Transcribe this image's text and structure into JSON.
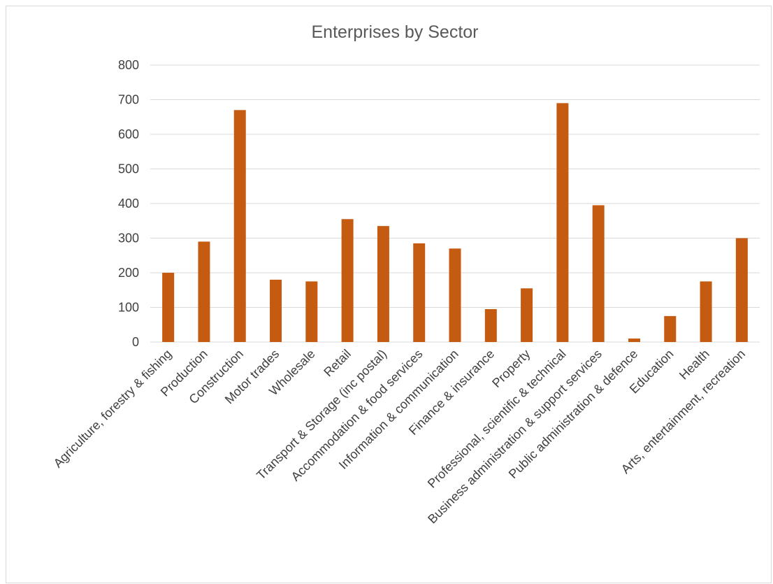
{
  "chart_data": {
    "type": "bar",
    "title": "Enterprises by Sector",
    "xlabel": "",
    "ylabel": "",
    "ylim": [
      0,
      800
    ],
    "yticks": [
      0,
      100,
      200,
      300,
      400,
      500,
      600,
      700,
      800
    ],
    "grid": true,
    "legend": "none",
    "bar_color": "#C55A11",
    "categories": [
      "Agriculture, forestry & fishing",
      "Production",
      "Construction",
      "Motor trades",
      "Wholesale",
      "Retail",
      "Transport & Storage (inc postal)",
      "Accommodation & food services",
      "Information & communication",
      "Finance & insurance",
      "Property",
      "Professional, scientific & technical",
      "Business administration & support services",
      "Public administration & defence",
      "Education",
      "Health",
      "Arts, entertainment, recreation"
    ],
    "values": [
      200,
      290,
      670,
      180,
      175,
      355,
      335,
      285,
      270,
      95,
      155,
      690,
      395,
      10,
      75,
      175,
      300
    ]
  }
}
